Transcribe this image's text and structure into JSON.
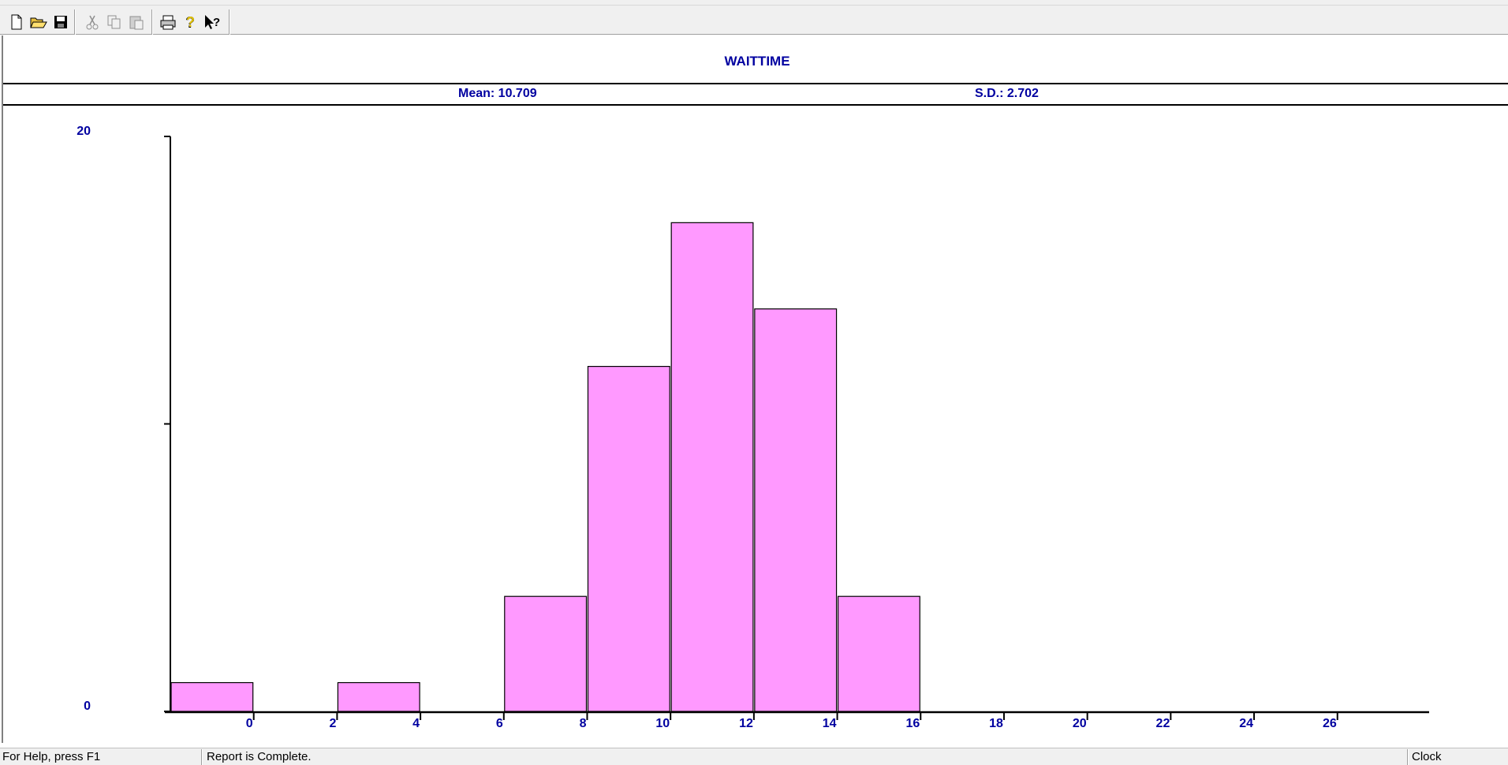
{
  "toolbar": {
    "buttons": [
      {
        "name": "new-icon",
        "enabled": true
      },
      {
        "name": "open-icon",
        "enabled": true
      },
      {
        "name": "save-icon",
        "enabled": true
      },
      {
        "name": "cut-icon",
        "enabled": false
      },
      {
        "name": "copy-icon",
        "enabled": false
      },
      {
        "name": "paste-icon",
        "enabled": false
      },
      {
        "name": "print-icon",
        "enabled": true
      },
      {
        "name": "help-icon",
        "enabled": true
      },
      {
        "name": "context-help-icon",
        "enabled": true
      }
    ]
  },
  "report": {
    "title": "WAITTIME",
    "mean_label": "Mean: 10.709",
    "sd_label": "S.D.: 2.702"
  },
  "chart_data": {
    "type": "bar",
    "title": "WAITTIME",
    "bin_width": 2,
    "bins": [
      {
        "start": -2,
        "end": 0,
        "count": 1
      },
      {
        "start": 2,
        "end": 4,
        "count": 1
      },
      {
        "start": 6,
        "end": 8,
        "count": 4
      },
      {
        "start": 8,
        "end": 10,
        "count": 12
      },
      {
        "start": 10,
        "end": 12,
        "count": 17
      },
      {
        "start": 12,
        "end": 14,
        "count": 14
      },
      {
        "start": 14,
        "end": 16,
        "count": 4
      }
    ],
    "x_ticks": [
      "0",
      "2",
      "4",
      "6",
      "8",
      "10",
      "12",
      "14",
      "16",
      "18",
      "20",
      "22",
      "24",
      "26"
    ],
    "xlim": [
      -2,
      28.2
    ],
    "ylim": [
      0,
      20
    ],
    "y_tick_labels": [
      "0",
      "20"
    ],
    "y_ticks": [
      0,
      10,
      20
    ],
    "bar_color": "#ff99ff",
    "label_color": "#0000a0"
  },
  "status": {
    "help": "For Help, press F1",
    "message": "Report is Complete.",
    "clock": "Clock"
  }
}
